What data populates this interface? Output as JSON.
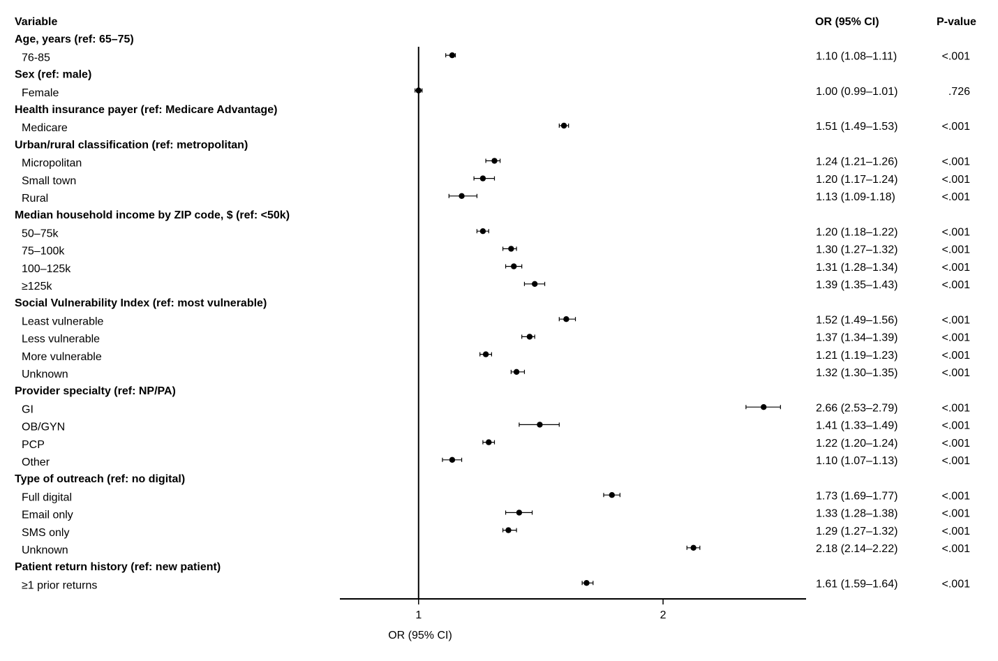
{
  "chart_data": {
    "type": "forest",
    "columns": [
      "Variable",
      "OR (95% CI)",
      "P-value"
    ],
    "xlabel": "OR (95% CI)",
    "xlim": [
      0.8,
      3.0
    ],
    "xticks": [
      1,
      2
    ],
    "log_scale": true,
    "reference": 1,
    "color": "#000000",
    "groups": [
      {
        "name": "Age, years (ref: 65–75)",
        "categories": [
          "76-85"
        ],
        "values": [
          1.1
        ],
        "lower": [
          1.08
        ],
        "upper": [
          1.11
        ],
        "value_labels": [
          "1.10 (1.08–1.11)"
        ],
        "p_values": [
          "<.001"
        ]
      },
      {
        "name": "Sex (ref: male)",
        "categories": [
          "Female"
        ],
        "values": [
          1.0
        ],
        "lower": [
          0.99
        ],
        "upper": [
          1.01
        ],
        "value_labels": [
          "1.00 (0.99–1.01)"
        ],
        "p_values": [
          ".726"
        ]
      },
      {
        "name": "Health insurance payer (ref: Medicare Advantage)",
        "categories": [
          "Medicare"
        ],
        "values": [
          1.51
        ],
        "lower": [
          1.49
        ],
        "upper": [
          1.53
        ],
        "value_labels": [
          "1.51 (1.49–1.53)"
        ],
        "p_values": [
          "<.001"
        ]
      },
      {
        "name": "Urban/rural classification (ref: metropolitan)",
        "categories": [
          "Micropolitan",
          "Small town",
          "Rural"
        ],
        "values": [
          1.24,
          1.2,
          1.13
        ],
        "lower": [
          1.21,
          1.17,
          1.09
        ],
        "upper": [
          1.26,
          1.24,
          1.18
        ],
        "value_labels": [
          "1.24 (1.21–1.26)",
          "1.20 (1.17–1.24)",
          "1.13 (1.09-1.18)"
        ],
        "p_values": [
          "<.001",
          "<.001",
          "<.001"
        ]
      },
      {
        "name": "Median household income by ZIP code, $ (ref: <50k)",
        "categories": [
          "50–75k",
          "75–100k",
          "100–125k",
          "≥125k"
        ],
        "values": [
          1.2,
          1.3,
          1.31,
          1.39
        ],
        "lower": [
          1.18,
          1.27,
          1.28,
          1.35
        ],
        "upper": [
          1.22,
          1.32,
          1.34,
          1.43
        ],
        "value_labels": [
          "1.20 (1.18–1.22)",
          "1.30 (1.27–1.32)",
          "1.31 (1.28–1.34)",
          "1.39 (1.35–1.43)"
        ],
        "p_values": [
          "<.001",
          "<.001",
          "<.001",
          "<.001"
        ]
      },
      {
        "name": "Social Vulnerability Index (ref: most vulnerable)",
        "categories": [
          "Least vulnerable",
          "Less vulnerable",
          "More vulnerable",
          "Unknown"
        ],
        "values": [
          1.52,
          1.37,
          1.21,
          1.32
        ],
        "lower": [
          1.49,
          1.34,
          1.19,
          1.3
        ],
        "upper": [
          1.56,
          1.39,
          1.23,
          1.35
        ],
        "value_labels": [
          "1.52 (1.49–1.56)",
          "1.37 (1.34–1.39)",
          "1.21 (1.19–1.23)",
          "1.32 (1.30–1.35)"
        ],
        "p_values": [
          "<.001",
          "<.001",
          "<.001",
          "<.001"
        ]
      },
      {
        "name": "Provider specialty (ref: NP/PA)",
        "categories": [
          "GI",
          "OB/GYN",
          "PCP",
          "Other"
        ],
        "values": [
          2.66,
          1.41,
          1.22,
          1.1
        ],
        "lower": [
          2.53,
          1.33,
          1.2,
          1.07
        ],
        "upper": [
          2.79,
          1.49,
          1.24,
          1.13
        ],
        "value_labels": [
          "2.66 (2.53–2.79)",
          "1.41 (1.33–1.49)",
          "1.22 (1.20–1.24)",
          "1.10 (1.07–1.13)"
        ],
        "p_values": [
          "<.001",
          "<.001",
          "<.001",
          "<.001"
        ]
      },
      {
        "name": "Type of outreach (ref: no digital)",
        "categories": [
          "Full digital",
          "Email only",
          "SMS only",
          "Unknown"
        ],
        "values": [
          1.73,
          1.33,
          1.29,
          2.18
        ],
        "lower": [
          1.69,
          1.28,
          1.27,
          2.14
        ],
        "upper": [
          1.77,
          1.38,
          1.32,
          2.22
        ],
        "value_labels": [
          "1.73 (1.69–1.77)",
          "1.33 (1.28–1.38)",
          "1.29 (1.27–1.32)",
          "2.18 (2.14–2.22)"
        ],
        "p_values": [
          "<.001",
          "<.001",
          "<.001",
          "<.001"
        ]
      },
      {
        "name": "Patient return history (ref: new patient)",
        "categories": [
          "≥1 prior returns"
        ],
        "values": [
          1.61
        ],
        "lower": [
          1.59
        ],
        "upper": [
          1.64
        ],
        "value_labels": [
          "1.61 (1.59–1.64)"
        ],
        "p_values": [
          "<.001"
        ]
      }
    ]
  }
}
